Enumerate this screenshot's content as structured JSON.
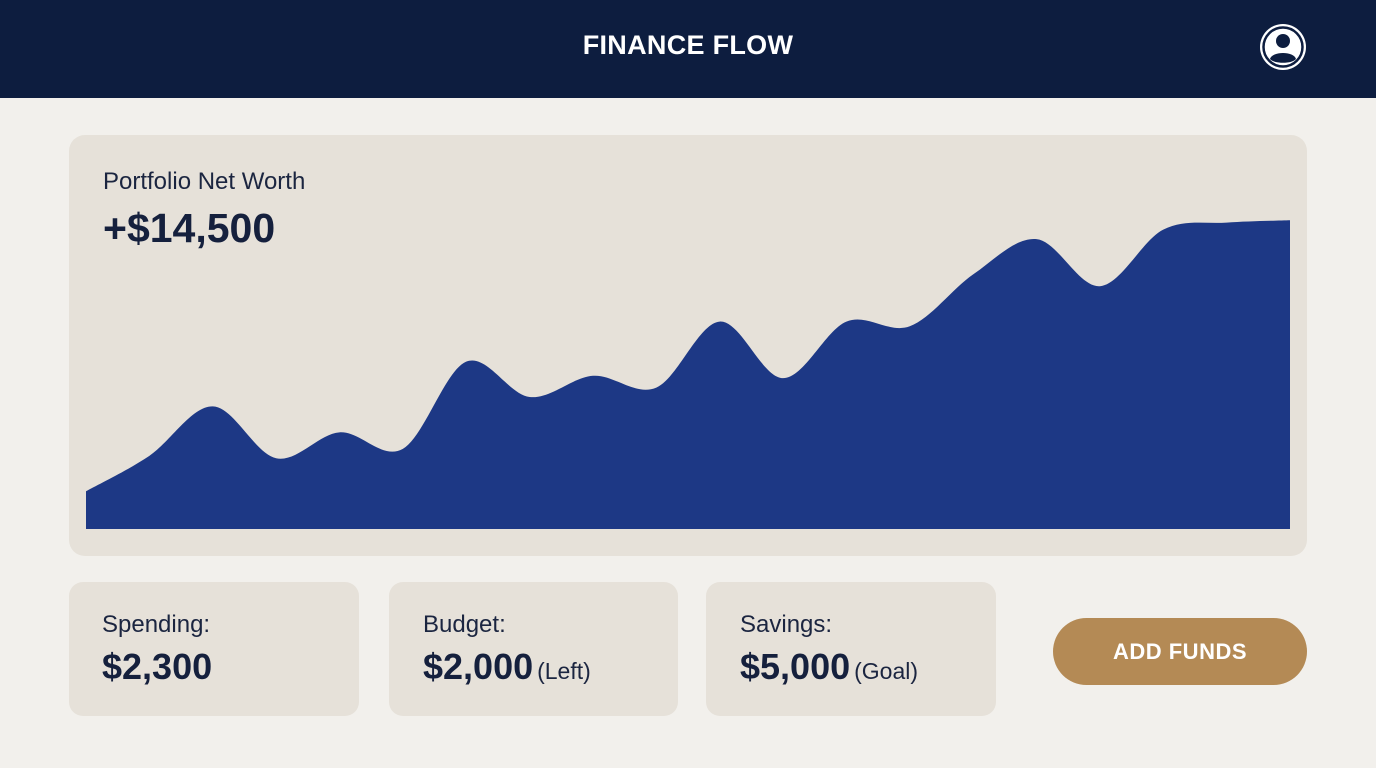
{
  "header": {
    "app_title": "FINANCE FLOW",
    "profile_icon": "user-avatar-icon"
  },
  "portfolio": {
    "label": "Portfolio Net Worth",
    "value": "+$14,500"
  },
  "chart_data": {
    "type": "area",
    "title": "",
    "xlabel": "",
    "ylabel": "",
    "x": [
      0,
      1,
      2,
      3,
      4,
      5,
      6,
      7,
      8,
      9,
      10,
      11,
      12,
      13,
      14,
      15,
      16,
      17,
      18,
      19
    ],
    "values": [
      16,
      31,
      52,
      30,
      41,
      34,
      71,
      56,
      65,
      60,
      88,
      64,
      88,
      86,
      108,
      123,
      103,
      127,
      130,
      131
    ],
    "ylim": [
      0,
      140
    ],
    "grid": false,
    "fill_color": "#1d3885"
  },
  "stats": [
    {
      "label": "Spending:",
      "value": "$2,300",
      "note": ""
    },
    {
      "label": "Budget:",
      "value": "$2,000",
      "note": "(Left)"
    },
    {
      "label": "Savings:",
      "value": "$5,000",
      "note": "(Goal)"
    }
  ],
  "actions": {
    "add_funds_label": "ADD FUNDS"
  },
  "colors": {
    "header_bg": "#0d1d3f",
    "page_bg": "#f2f0ec",
    "card_bg": "#e6e1d9",
    "chart_fill": "#1d3885",
    "accent_button": "#b48a55"
  }
}
